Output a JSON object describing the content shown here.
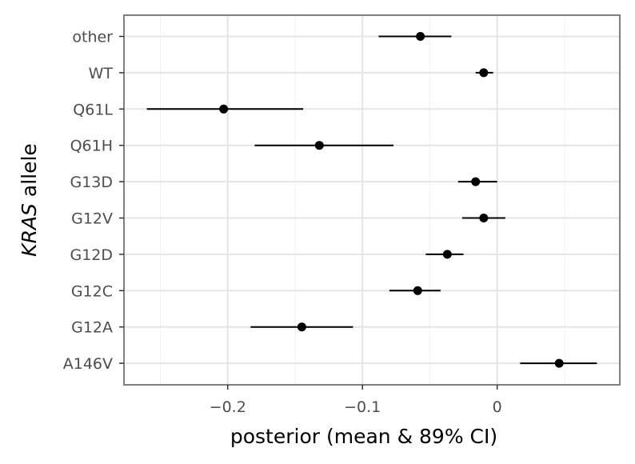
{
  "chart_data": {
    "type": "scatter",
    "subtype": "pointrange",
    "orientation": "horizontal",
    "xlabel": "posterior (mean & 89% CI)",
    "ylabel_italic": "KRAS",
    "ylabel_rest": " allele",
    "xlim": [
      -0.277,
      0.091
    ],
    "x_ticks": [
      -0.2,
      -0.1,
      0
    ],
    "x_tick_labels": [
      "−0.2",
      "−0.1",
      "0"
    ],
    "grid": true,
    "legend": "none",
    "point_color": "#000000",
    "categories": [
      "other",
      "WT",
      "Q61L",
      "Q61H",
      "G13D",
      "G12V",
      "G12D",
      "G12C",
      "G12A",
      "A146V"
    ],
    "mean": [
      -0.057,
      -0.01,
      -0.203,
      -0.132,
      -0.016,
      -0.01,
      -0.037,
      -0.059,
      -0.145,
      0.046
    ],
    "lower": [
      -0.088,
      -0.016,
      -0.26,
      -0.18,
      -0.029,
      -0.026,
      -0.053,
      -0.08,
      -0.183,
      0.017
    ],
    "upper": [
      -0.034,
      -0.003,
      -0.144,
      -0.077,
      0.0,
      0.006,
      -0.025,
      -0.042,
      -0.107,
      0.074
    ]
  }
}
